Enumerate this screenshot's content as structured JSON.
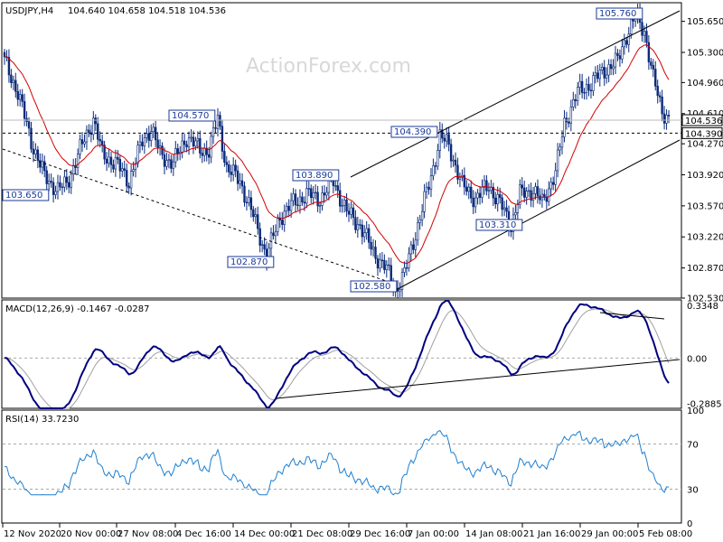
{
  "chart_data": [
    {
      "type": "candlestick",
      "title": "USDJPY,H4",
      "ohlc_label": "104.640 104.658 104.518 104.536",
      "watermark": "ActionForex.com",
      "ylim": [
        102.53,
        105.86
      ],
      "y_ticks": [
        105.65,
        105.3,
        104.96,
        104.61,
        104.27,
        103.92,
        103.57,
        103.22,
        102.87,
        102.53
      ],
      "y_tick_labels": [
        "105.650",
        "105.300",
        "104.960",
        "104.610",
        "104.270",
        "103.920",
        "103.570",
        "103.220",
        "102.870",
        "102.530"
      ],
      "x_tick_labels": [
        "12 Nov 2020",
        "20 Nov 00:00",
        "27 Nov 08:00",
        "4 Dec 16:00",
        "14 Dec 00:00",
        "21 Dec 08:00",
        "29 Dec 16:00",
        "7 Jan 00:00",
        "14 Jan 08:00",
        "21 Jan 16:00",
        "29 Jan 00:00",
        "5 Feb 08:00"
      ],
      "current_price": 104.536,
      "current_price_label": "104.536",
      "level_line": 104.39,
      "level_line_label": "104.390",
      "annotations": [
        {
          "text": "105.760",
          "value": 105.76
        },
        {
          "text": "104.570",
          "value": 104.57
        },
        {
          "text": "104.390",
          "value": 104.39
        },
        {
          "text": "103.890",
          "value": 103.89
        },
        {
          "text": "103.650",
          "value": 103.65
        },
        {
          "text": "103.310",
          "value": 103.31
        },
        {
          "text": "102.870",
          "value": 102.87
        },
        {
          "text": "102.580",
          "value": 102.58
        }
      ],
      "moving_average_color": "#d40000",
      "candle_color": "#0a2a7a"
    },
    {
      "type": "line",
      "title": "MACD(12,26,9) -0.1467 -0.0287",
      "ylim": [
        -0.32,
        0.37
      ],
      "y_tick_labels": [
        "0.3348",
        "0.00",
        "-0.2885"
      ],
      "y_ticks": [
        0.3348,
        0.0,
        -0.2885
      ],
      "zero_label": "0.00",
      "series": [
        {
          "name": "",
          "color": "#000080"
        },
        {
          "name": "",
          "color": "#a0a0a0"
        }
      ]
    },
    {
      "type": "line",
      "title": "RSI(14) 33.7230",
      "ylim": [
        0,
        100
      ],
      "y_ticks": [
        100,
        70,
        30,
        0
      ],
      "y_tick_labels": [
        "100",
        "70",
        "30",
        "0"
      ],
      "levels": [
        70,
        30
      ],
      "series": [
        {
          "name": "",
          "color": "#1e7fd0"
        }
      ]
    }
  ]
}
